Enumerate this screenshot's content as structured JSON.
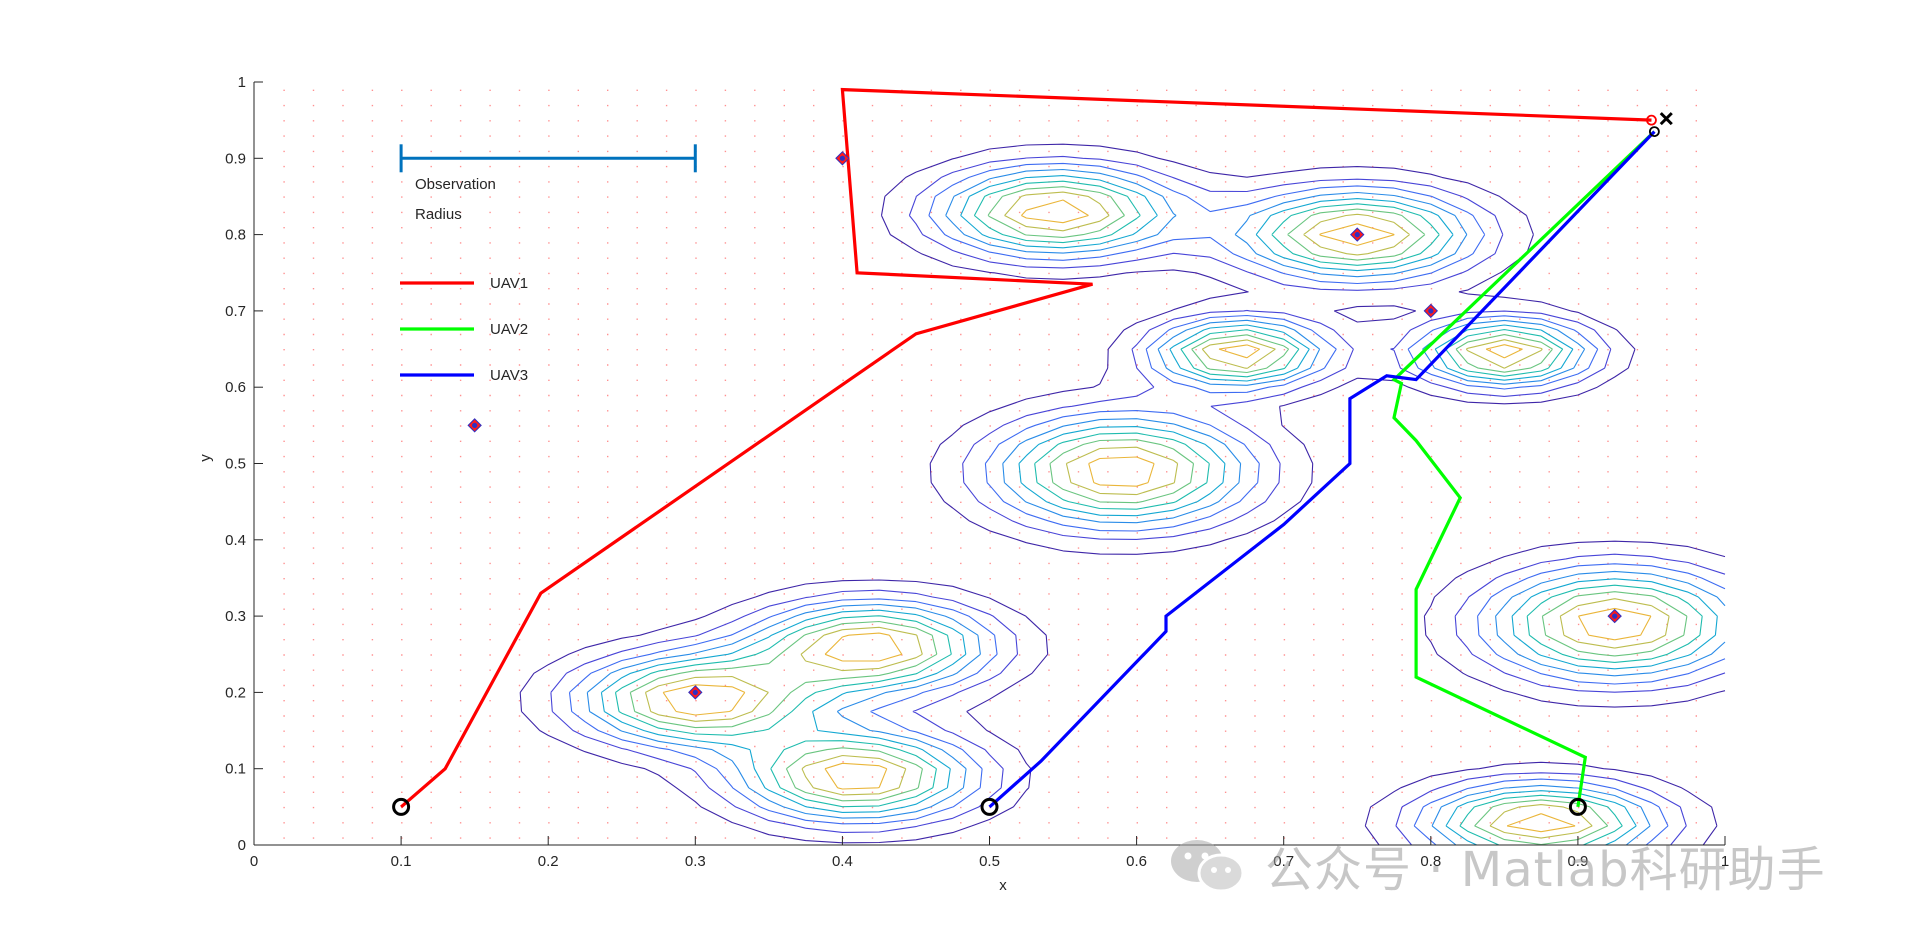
{
  "chart_data": {
    "type": "line",
    "title": "",
    "xlabel": "x",
    "ylabel": "y",
    "xlim": [
      0,
      1
    ],
    "ylim": [
      0,
      1
    ],
    "xticks": [
      "0",
      "0.1",
      "0.2",
      "0.3",
      "0.4",
      "0.5",
      "0.6",
      "0.7",
      "0.8",
      "0.9",
      "1"
    ],
    "yticks": [
      "0",
      "0.1",
      "0.2",
      "0.3",
      "0.4",
      "0.5",
      "0.6",
      "0.7",
      "0.8",
      "0.9",
      "1"
    ],
    "grid": false,
    "legend_position": "top-left",
    "observation_radius": {
      "label_line1": "Observation",
      "label_line2": "Radius",
      "x_start": 0.1,
      "x_end": 0.3,
      "y": 0.9,
      "color": "#0072BD"
    },
    "series": [
      {
        "name": "UAV1",
        "color": "#FF0000",
        "x": [
          0.1,
          0.13,
          0.195,
          0.45,
          0.57,
          0.41,
          0.4,
          0.95
        ],
        "y": [
          0.05,
          0.1,
          0.33,
          0.67,
          0.735,
          0.75,
          0.99,
          0.95
        ]
      },
      {
        "name": "UAV2",
        "color": "#00FF00",
        "x": [
          0.9,
          0.905,
          0.79,
          0.79,
          0.82,
          0.79,
          0.775,
          0.78,
          0.775,
          0.952
        ],
        "y": [
          0.05,
          0.115,
          0.22,
          0.335,
          0.455,
          0.53,
          0.56,
          0.605,
          0.61,
          0.935
        ]
      },
      {
        "name": "UAV3",
        "color": "#0000FF",
        "x": [
          0.5,
          0.535,
          0.62,
          0.62,
          0.7,
          0.745,
          0.745,
          0.77,
          0.79,
          0.952
        ],
        "y": [
          0.05,
          0.11,
          0.28,
          0.3,
          0.42,
          0.5,
          0.585,
          0.615,
          0.61,
          0.935
        ]
      }
    ],
    "start_points": [
      {
        "x": 0.1,
        "y": 0.05
      },
      {
        "x": 0.5,
        "y": 0.05
      },
      {
        "x": 0.9,
        "y": 0.05
      }
    ],
    "end_points": [
      {
        "x": 0.95,
        "y": 0.95,
        "color": "#FF0000"
      },
      {
        "x": 0.952,
        "y": 0.935,
        "color": "#000000"
      }
    ],
    "goal_cross": {
      "x": 0.956,
      "y": 0.952
    },
    "targets": [
      {
        "x": 0.15,
        "y": 0.55
      },
      {
        "x": 0.4,
        "y": 0.9
      },
      {
        "x": 0.3,
        "y": 0.2
      },
      {
        "x": 0.75,
        "y": 0.8
      },
      {
        "x": 0.8,
        "y": 0.7
      },
      {
        "x": 0.925,
        "y": 0.3
      }
    ],
    "contour_peaks": [
      {
        "x": 0.3,
        "y": 0.19,
        "sx": 0.055,
        "sy": 0.04
      },
      {
        "x": 0.42,
        "y": 0.26,
        "sx": 0.055,
        "sy": 0.04
      },
      {
        "x": 0.41,
        "y": 0.09,
        "sx": 0.055,
        "sy": 0.04
      },
      {
        "x": 0.545,
        "y": 0.83,
        "sx": 0.055,
        "sy": 0.04
      },
      {
        "x": 0.75,
        "y": 0.8,
        "sx": 0.055,
        "sy": 0.04
      },
      {
        "x": 0.67,
        "y": 0.645,
        "sx": 0.04,
        "sy": 0.03
      },
      {
        "x": 0.85,
        "y": 0.645,
        "sx": 0.04,
        "sy": 0.03
      },
      {
        "x": 0.59,
        "y": 0.49,
        "sx": 0.06,
        "sy": 0.05
      },
      {
        "x": 0.925,
        "y": 0.29,
        "sx": 0.06,
        "sy": 0.05
      },
      {
        "x": 0.875,
        "y": 0.03,
        "sx": 0.055,
        "sy": 0.035
      }
    ]
  },
  "watermark": {
    "text": "公众号 · Matlab科研助手",
    "icon": "wechat-icon"
  }
}
